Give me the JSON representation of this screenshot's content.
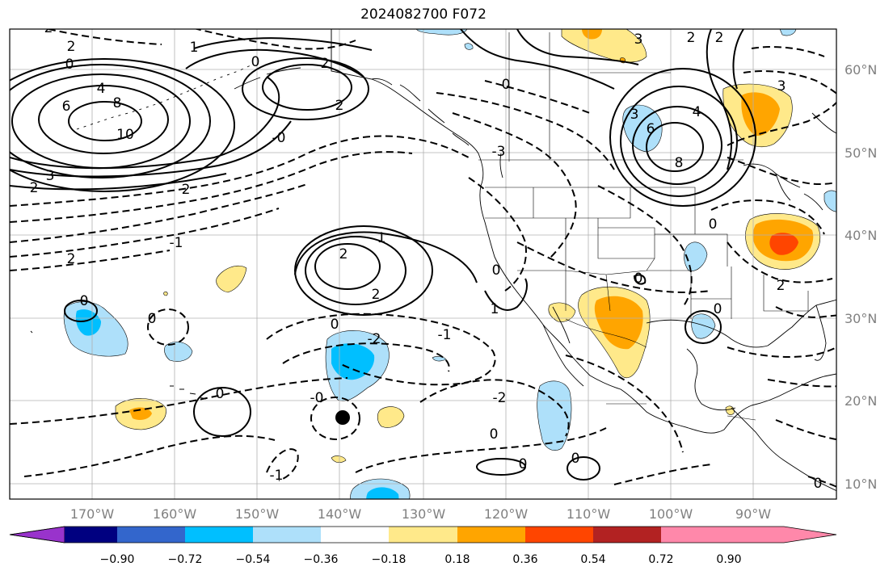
{
  "title": "2024082700 F072",
  "lat_labels": [
    "60°N",
    "50°N",
    "40°N",
    "30°N",
    "20°N",
    "10°N"
  ],
  "lon_labels": [
    "170°W",
    "160°W",
    "150°W",
    "140°W",
    "130°W",
    "120°W",
    "110°W",
    "100°W",
    "90°W"
  ],
  "colorbar": {
    "ticks": [
      "−0.90",
      "−0.72",
      "−0.54",
      "−0.36",
      "−0.18",
      "0.18",
      "0.36",
      "0.54",
      "0.72",
      "0.90"
    ],
    "colors": [
      "#9933cc",
      "#000080",
      "#3366cc",
      "#00bfff",
      "#aee0fa",
      "#ffffff",
      "#ffe98a",
      "#ffa500",
      "#ff4500",
      "#b22222",
      "#ff88aa"
    ]
  },
  "contour_labels": {
    "l1": "2",
    "l2": "2",
    "l3": "1",
    "l4": "0",
    "l5": "0",
    "l6": "2",
    "l7": "4",
    "l8": "6",
    "l9": "8",
    "l10": "10",
    "l11": "2",
    "l12": "0",
    "l13": "-0",
    "l14": "-3",
    "l15": "3",
    "l16": "2",
    "l17": "2",
    "l18": "3",
    "l19": "2",
    "l20": "3",
    "l21": "6",
    "l22": "8",
    "l23": "4",
    "l24": "0",
    "l25": "2",
    "l26": "3",
    "l27": "-1",
    "l28": "2",
    "l29": "1",
    "l30": "2",
    "l31": "0",
    "l32": "2",
    "l33": "0",
    "l34": "-2",
    "l35": "1",
    "l36": "-1",
    "l37": "0",
    "l38": "0",
    "l39": "0",
    "l40": "-0",
    "l41": "-2",
    "l42": "0",
    "l43": "-1",
    "l44": "0",
    "l45": "0",
    "l46": "2",
    "l47": "0",
    "l48": "0",
    "l49": "0"
  }
}
